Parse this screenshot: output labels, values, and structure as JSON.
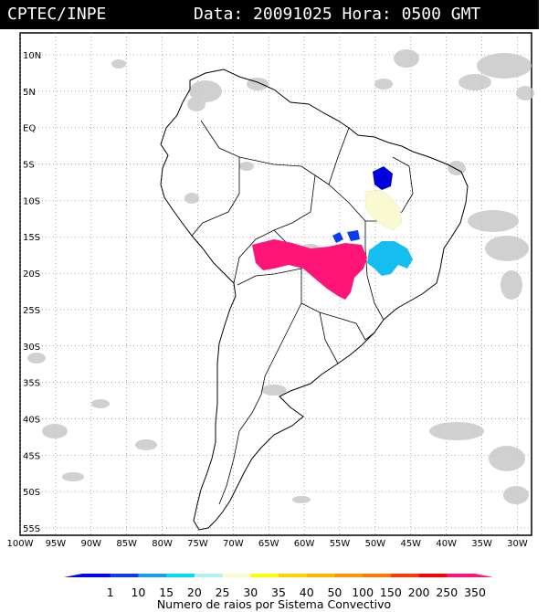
{
  "header": {
    "source": "CPTEC/INPE",
    "datetime": "Data: 20091025 Hora: 0500 GMT"
  },
  "map": {
    "lat_labels": [
      "10N",
      "5N",
      "EQ",
      "5S",
      "10S",
      "15S",
      "20S",
      "25S",
      "30S",
      "35S",
      "40S",
      "45S",
      "50S",
      "55S"
    ],
    "lon_labels": [
      "100W",
      "95W",
      "90W",
      "85W",
      "80W",
      "75W",
      "70W",
      "65W",
      "60W",
      "55W",
      "50W",
      "45W",
      "40W",
      "35W",
      "30W"
    ],
    "lon_range": [
      -100,
      -28
    ],
    "lat_range": [
      -56,
      13
    ],
    "grid": true
  },
  "colorbar": {
    "labels": [
      "1",
      "10",
      "15",
      "20",
      "25",
      "30",
      "35",
      "40",
      "50",
      "100",
      "150",
      "200",
      "250",
      "350"
    ],
    "colors": [
      "#0000ff",
      "#0a3cf0",
      "#14a0f0",
      "#00dcf0",
      "#b4f0f0",
      "#fafad2",
      "#ffff00",
      "#ffd200",
      "#ffb400",
      "#ff9600",
      "#ff7800",
      "#ff3c00",
      "#ff0000",
      "#ff1478"
    ],
    "caption": "Numero de raios por Sistema Convectivo"
  },
  "systems": [
    {
      "name": "northeast-cluster",
      "color": "#0000dd"
    },
    {
      "name": "bahia-cluster",
      "color": "#fafad2"
    },
    {
      "name": "central-cluster",
      "color": "#0a3cf0"
    },
    {
      "name": "paraguay-cluster",
      "color": "#ff1478"
    },
    {
      "name": "minas-cluster",
      "color": "#14bef0"
    }
  ]
}
